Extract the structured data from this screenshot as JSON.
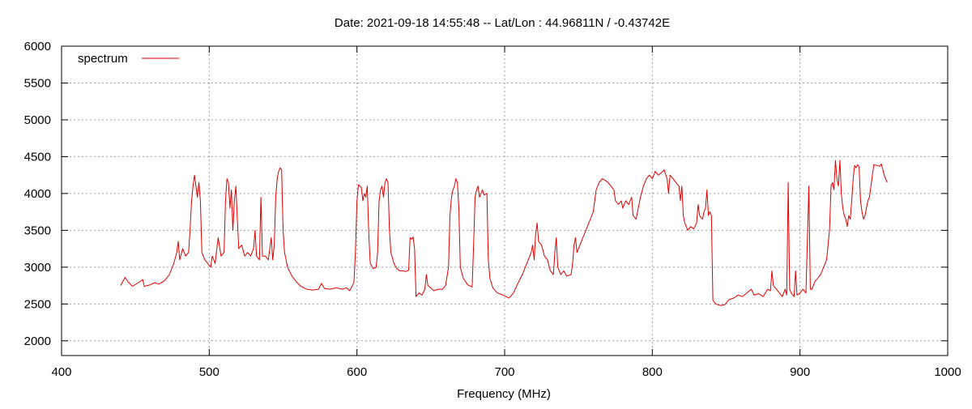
{
  "chart_data": {
    "type": "line",
    "title": "Date: 2021-09-18 14:55:48  --  Lat/Lon : 44.96811N / -0.43742E",
    "xlabel": "Frequency (MHz)",
    "ylabel": "",
    "xlim": [
      400,
      1000
    ],
    "ylim": [
      1800,
      6000
    ],
    "x_ticks": [
      400,
      500,
      600,
      700,
      800,
      900,
      1000
    ],
    "y_ticks": [
      2000,
      2500,
      3000,
      3500,
      4000,
      4500,
      5000,
      5500,
      6000
    ],
    "grid": true,
    "legend_position": "top-left",
    "series": [
      {
        "name": "spectrum",
        "color": "#e00000",
        "points": [
          [
            440,
            2750
          ],
          [
            443,
            2860
          ],
          [
            445,
            2800
          ],
          [
            448,
            2740
          ],
          [
            452,
            2790
          ],
          [
            455,
            2830
          ],
          [
            456,
            2740
          ],
          [
            460,
            2760
          ],
          [
            463,
            2790
          ],
          [
            466,
            2770
          ],
          [
            470,
            2820
          ],
          [
            473,
            2900
          ],
          [
            476,
            3050
          ],
          [
            478,
            3200
          ],
          [
            479,
            3350
          ],
          [
            480,
            3100
          ],
          [
            482,
            3250
          ],
          [
            484,
            3150
          ],
          [
            486,
            3200
          ],
          [
            487,
            3500
          ],
          [
            488,
            3900
          ],
          [
            489,
            4100
          ],
          [
            490,
            4250
          ],
          [
            491,
            4100
          ],
          [
            492,
            3950
          ],
          [
            493,
            4150
          ],
          [
            494,
            3900
          ],
          [
            495,
            3200
          ],
          [
            497,
            3100
          ],
          [
            499,
            3050
          ],
          [
            501,
            3000
          ],
          [
            502,
            3150
          ],
          [
            504,
            3050
          ],
          [
            506,
            3400
          ],
          [
            508,
            3150
          ],
          [
            510,
            3200
          ],
          [
            511,
            3900
          ],
          [
            512,
            4200
          ],
          [
            513,
            4150
          ],
          [
            514,
            3800
          ],
          [
            515,
            4050
          ],
          [
            516,
            3500
          ],
          [
            517,
            3900
          ],
          [
            518,
            4100
          ],
          [
            519,
            3650
          ],
          [
            520,
            3250
          ],
          [
            522,
            3300
          ],
          [
            524,
            3150
          ],
          [
            526,
            3200
          ],
          [
            528,
            3150
          ],
          [
            530,
            3250
          ],
          [
            531,
            3500
          ],
          [
            532,
            3150
          ],
          [
            534,
            3100
          ],
          [
            535,
            3950
          ],
          [
            536,
            3150
          ],
          [
            538,
            3150
          ],
          [
            540,
            3100
          ],
          [
            542,
            3400
          ],
          [
            543,
            3100
          ],
          [
            544,
            3300
          ],
          [
            545,
            3950
          ],
          [
            546,
            4200
          ],
          [
            547,
            4300
          ],
          [
            548,
            4350
          ],
          [
            549,
            4320
          ],
          [
            550,
            3500
          ],
          [
            551,
            3200
          ],
          [
            553,
            3000
          ],
          [
            556,
            2880
          ],
          [
            559,
            2800
          ],
          [
            562,
            2740
          ],
          [
            566,
            2700
          ],
          [
            570,
            2690
          ],
          [
            574,
            2700
          ],
          [
            576,
            2780
          ],
          [
            578,
            2710
          ],
          [
            582,
            2700
          ],
          [
            586,
            2720
          ],
          [
            590,
            2700
          ],
          [
            593,
            2720
          ],
          [
            595,
            2680
          ],
          [
            597,
            2750
          ],
          [
            598,
            2800
          ],
          [
            599,
            3200
          ],
          [
            600,
            3900
          ],
          [
            601,
            4120
          ],
          [
            603,
            4080
          ],
          [
            604,
            3900
          ],
          [
            605,
            4000
          ],
          [
            606,
            3950
          ],
          [
            607,
            4100
          ],
          [
            608,
            3450
          ],
          [
            609,
            3050
          ],
          [
            611,
            2980
          ],
          [
            613,
            3000
          ],
          [
            614,
            3200
          ],
          [
            615,
            3900
          ],
          [
            616,
            4050
          ],
          [
            617,
            4100
          ],
          [
            618,
            3950
          ],
          [
            619,
            4150
          ],
          [
            620,
            4200
          ],
          [
            621,
            4150
          ],
          [
            622,
            3500
          ],
          [
            623,
            3200
          ],
          [
            625,
            3050
          ],
          [
            627,
            2980
          ],
          [
            629,
            2950
          ],
          [
            631,
            2950
          ],
          [
            633,
            2940
          ],
          [
            635,
            2960
          ],
          [
            636,
            3400
          ],
          [
            637,
            3380
          ],
          [
            638,
            3410
          ],
          [
            639,
            3250
          ],
          [
            640,
            2600
          ],
          [
            642,
            2650
          ],
          [
            644,
            2620
          ],
          [
            646,
            2700
          ],
          [
            647,
            2900
          ],
          [
            648,
            2750
          ],
          [
            650,
            2720
          ],
          [
            652,
            2680
          ],
          [
            655,
            2700
          ],
          [
            658,
            2700
          ],
          [
            660,
            2750
          ],
          [
            662,
            3000
          ],
          [
            663,
            3700
          ],
          [
            664,
            3950
          ],
          [
            665,
            4050
          ],
          [
            666,
            4100
          ],
          [
            667,
            4200
          ],
          [
            668,
            4150
          ],
          [
            669,
            3800
          ],
          [
            670,
            3000
          ],
          [
            672,
            2850
          ],
          [
            675,
            2760
          ],
          [
            678,
            2730
          ],
          [
            679,
            3300
          ],
          [
            680,
            3950
          ],
          [
            681,
            4050
          ],
          [
            682,
            4100
          ],
          [
            683,
            3950
          ],
          [
            685,
            4050
          ],
          [
            686,
            3980
          ],
          [
            688,
            4000
          ],
          [
            689,
            3100
          ],
          [
            690,
            2850
          ],
          [
            692,
            2720
          ],
          [
            695,
            2650
          ],
          [
            699,
            2620
          ],
          [
            703,
            2580
          ],
          [
            706,
            2650
          ],
          [
            709,
            2780
          ],
          [
            712,
            2900
          ],
          [
            715,
            3050
          ],
          [
            718,
            3200
          ],
          [
            719,
            3300
          ],
          [
            720,
            3100
          ],
          [
            721,
            3450
          ],
          [
            722,
            3600
          ],
          [
            723,
            3350
          ],
          [
            725,
            3300
          ],
          [
            727,
            3150
          ],
          [
            729,
            3100
          ],
          [
            731,
            2950
          ],
          [
            733,
            2900
          ],
          [
            734,
            3200
          ],
          [
            735,
            3400
          ],
          [
            736,
            3000
          ],
          [
            738,
            2900
          ],
          [
            740,
            2950
          ],
          [
            742,
            2880
          ],
          [
            745,
            2900
          ],
          [
            746,
            3050
          ],
          [
            747,
            3300
          ],
          [
            748,
            3400
          ],
          [
            749,
            3200
          ],
          [
            751,
            3300
          ],
          [
            753,
            3400
          ],
          [
            755,
            3500
          ],
          [
            758,
            3650
          ],
          [
            760,
            3750
          ],
          [
            762,
            4050
          ],
          [
            764,
            4150
          ],
          [
            766,
            4200
          ],
          [
            768,
            4180
          ],
          [
            770,
            4150
          ],
          [
            772,
            4100
          ],
          [
            774,
            4050
          ],
          [
            775,
            3900
          ],
          [
            777,
            3850
          ],
          [
            779,
            3900
          ],
          [
            780,
            3800
          ],
          [
            782,
            3900
          ],
          [
            784,
            3850
          ],
          [
            786,
            3950
          ],
          [
            787,
            3700
          ],
          [
            789,
            3650
          ],
          [
            790,
            3750
          ],
          [
            792,
            3950
          ],
          [
            794,
            4100
          ],
          [
            796,
            4200
          ],
          [
            798,
            4250
          ],
          [
            800,
            4200
          ],
          [
            802,
            4300
          ],
          [
            804,
            4250
          ],
          [
            806,
            4280
          ],
          [
            808,
            4320
          ],
          [
            810,
            4200
          ],
          [
            811,
            4000
          ],
          [
            812,
            4250
          ],
          [
            814,
            4200
          ],
          [
            816,
            4150
          ],
          [
            818,
            4100
          ],
          [
            819,
            3900
          ],
          [
            820,
            4100
          ],
          [
            821,
            3700
          ],
          [
            822,
            3600
          ],
          [
            824,
            3500
          ],
          [
            826,
            3550
          ],
          [
            828,
            3520
          ],
          [
            830,
            3600
          ],
          [
            831,
            3850
          ],
          [
            832,
            3700
          ],
          [
            834,
            3650
          ],
          [
            835,
            3750
          ],
          [
            836,
            3800
          ],
          [
            837,
            4050
          ],
          [
            838,
            3700
          ],
          [
            839,
            3750
          ],
          [
            840,
            3700
          ],
          [
            841,
            2550
          ],
          [
            843,
            2500
          ],
          [
            846,
            2480
          ],
          [
            849,
            2490
          ],
          [
            852,
            2560
          ],
          [
            855,
            2580
          ],
          [
            858,
            2620
          ],
          [
            861,
            2600
          ],
          [
            864,
            2650
          ],
          [
            867,
            2700
          ],
          [
            869,
            2620
          ],
          [
            872,
            2640
          ],
          [
            875,
            2600
          ],
          [
            878,
            2700
          ],
          [
            880,
            2680
          ],
          [
            881,
            2950
          ],
          [
            882,
            2750
          ],
          [
            884,
            2700
          ],
          [
            886,
            2650
          ],
          [
            888,
            2600
          ],
          [
            890,
            2700
          ],
          [
            891,
            2620
          ],
          [
            892,
            4150
          ],
          [
            893,
            2700
          ],
          [
            894,
            2650
          ],
          [
            896,
            2600
          ],
          [
            897,
            2950
          ],
          [
            898,
            2620
          ],
          [
            900,
            2650
          ],
          [
            902,
            2700
          ],
          [
            904,
            2650
          ],
          [
            906,
            4100
          ],
          [
            907,
            2700
          ],
          [
            908,
            2700
          ],
          [
            910,
            2800
          ],
          [
            912,
            2850
          ],
          [
            914,
            2900
          ],
          [
            916,
            3000
          ],
          [
            918,
            3100
          ],
          [
            920,
            3500
          ],
          [
            921,
            4100
          ],
          [
            922,
            4150
          ],
          [
            923,
            4050
          ],
          [
            924,
            4450
          ],
          [
            925,
            4200
          ],
          [
            926,
            4100
          ],
          [
            927,
            4450
          ],
          [
            928,
            4000
          ],
          [
            929,
            3800
          ],
          [
            930,
            3700
          ],
          [
            931,
            3650
          ],
          [
            932,
            3550
          ],
          [
            933,
            3700
          ],
          [
            934,
            3650
          ],
          [
            935,
            3900
          ],
          [
            936,
            4200
          ],
          [
            937,
            4380
          ],
          [
            938,
            4350
          ],
          [
            939,
            4390
          ],
          [
            940,
            4360
          ],
          [
            941,
            3900
          ],
          [
            942,
            3750
          ],
          [
            943,
            3650
          ],
          [
            944,
            3700
          ],
          [
            945,
            3800
          ],
          [
            946,
            3900
          ],
          [
            947,
            3950
          ],
          [
            948,
            4100
          ],
          [
            950,
            4390
          ],
          [
            952,
            4380
          ],
          [
            954,
            4370
          ],
          [
            955,
            4400
          ],
          [
            956,
            4330
          ],
          [
            957,
            4250
          ],
          [
            958,
            4200
          ],
          [
            959,
            4150
          ]
        ]
      }
    ]
  }
}
